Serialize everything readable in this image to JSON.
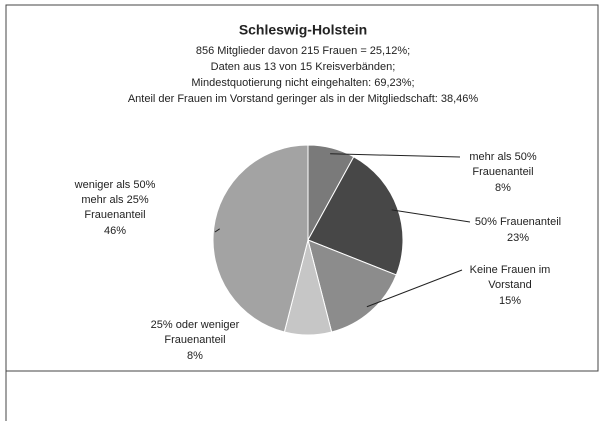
{
  "chart_data": {
    "type": "pie",
    "title": "Schleswig-Holstein",
    "subtitle": [
      "856 Mitglieder davon 215 Frauen = 25,12%;",
      "Daten aus 13 von 15 Kreisverbänden;",
      "Mindestquotierung nicht eingehalten: 69,23%;",
      "Anteil der Frauen im Vorstand geringer als in der Mitgliedschaft: 38,46%"
    ],
    "categories": [
      [
        "mehr als 50%",
        "Frauenanteil"
      ],
      [
        "50% Frauenanteil"
      ],
      [
        "Keine Frauen im",
        "Vorstand"
      ],
      [
        "25% oder weniger",
        "Frauenanteil"
      ],
      [
        "weniger als 50%",
        "mehr als 25%",
        "Frauenanteil"
      ]
    ],
    "values": [
      8,
      23,
      15,
      8,
      46
    ],
    "value_labels": [
      "8%",
      "23%",
      "15%",
      "8%",
      "46%"
    ],
    "colors": [
      "#7a7a7a",
      "#474747",
      "#8c8c8c",
      "#c6c6c6",
      "#a3a3a3"
    ]
  }
}
